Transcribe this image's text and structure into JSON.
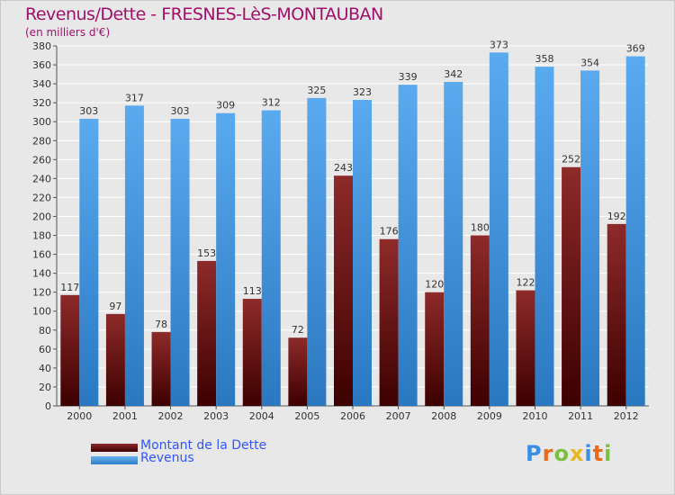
{
  "header": {
    "title": "Revenus/Dette - FRESNES-LèS-MONTAUBAN",
    "subtitle": "(en milliers d'€)"
  },
  "legend": {
    "items": [
      {
        "label": "Montant de la Dette",
        "color": "#7a1a1a"
      },
      {
        "label": "Revenus",
        "color": "#4a9de0"
      }
    ]
  },
  "logo": {
    "letters": [
      "P",
      "r",
      "o",
      "x",
      "i",
      "t",
      "i"
    ],
    "colors": [
      "#3a8ee6",
      "#e86a1c",
      "#7ac142",
      "#e8b820",
      "#3a8ee6",
      "#e86a1c",
      "#7ac142"
    ]
  },
  "chart_data": {
    "type": "bar",
    "title": "Revenus/Dette - FRESNES-LèS-MONTAUBAN",
    "subtitle": "(en milliers d'€)",
    "categories": [
      "2000",
      "2001",
      "2002",
      "2003",
      "2004",
      "2005",
      "2006",
      "2007",
      "2008",
      "2009",
      "2010",
      "2011",
      "2012"
    ],
    "series": [
      {
        "name": "Montant de la Dette",
        "color": "#7a1a1a",
        "values": [
          117,
          97,
          78,
          153,
          113,
          72,
          243,
          176,
          120,
          180,
          122,
          252,
          192
        ]
      },
      {
        "name": "Revenus",
        "color": "#4a9de0",
        "values": [
          303,
          317,
          303,
          309,
          312,
          325,
          323,
          339,
          342,
          373,
          358,
          354,
          369
        ]
      }
    ],
    "ylim": [
      0,
      380
    ],
    "ytick_step": 20,
    "grid": true,
    "legend_position": "bottom-left"
  }
}
